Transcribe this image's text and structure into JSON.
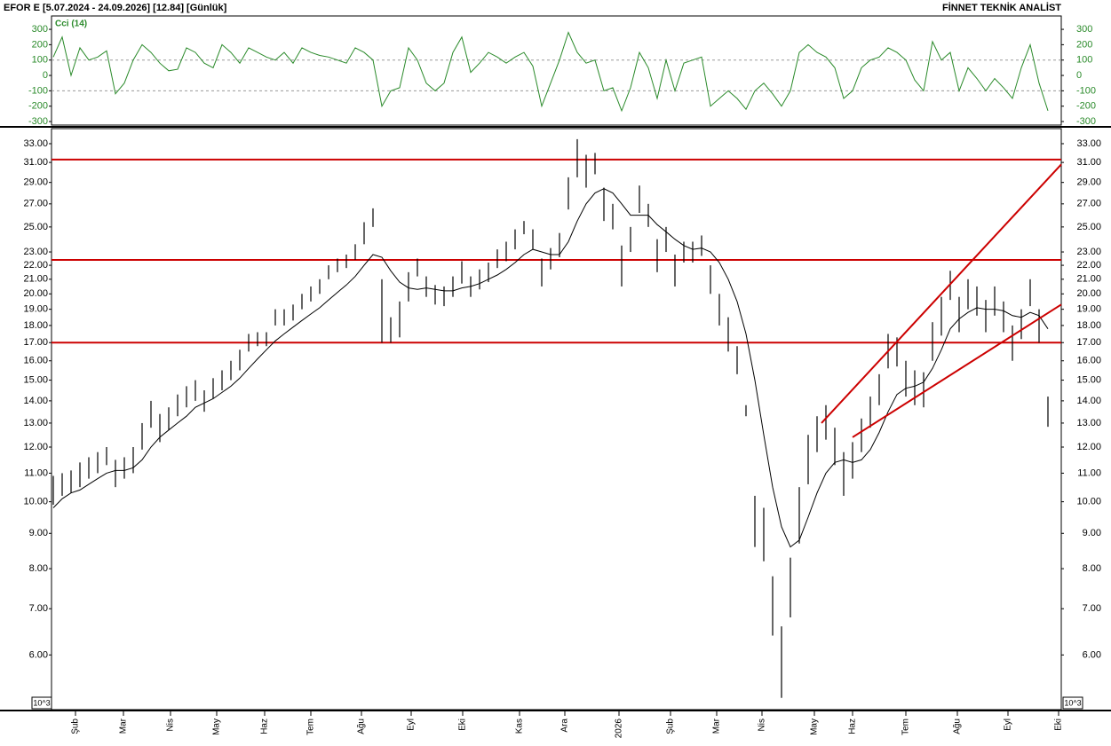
{
  "header": {
    "left": "EFOR  E  [5.07.2024 - 24.09.2026]  [12.84]  [Günlük]",
    "right": "FİNNET TEKNİK ANALİST",
    "unit_badge": "10^3"
  },
  "chart_data": [
    {
      "type": "line",
      "title": "Cci (14)",
      "xlim": [
        -0.2,
        113.5
      ],
      "ylim": [
        -323,
        387
      ],
      "yticks": [
        300,
        200,
        100,
        0,
        -100,
        -200,
        -300
      ],
      "levels": [
        100,
        -100
      ],
      "series": [
        {
          "name": "Cci (14)",
          "color": "#2a8a2a",
          "values": [
            120,
            250,
            0,
            180,
            100,
            120,
            160,
            -120,
            -50,
            100,
            200,
            150,
            80,
            30,
            40,
            180,
            150,
            80,
            50,
            200,
            150,
            80,
            180,
            150,
            120,
            100,
            150,
            80,
            180,
            150,
            130,
            120,
            100,
            80,
            180,
            150,
            100,
            -200,
            -100,
            -80,
            180,
            100,
            -50,
            -100,
            -50,
            150,
            250,
            20,
            80,
            150,
            120,
            80,
            120,
            150,
            60,
            -200,
            -50,
            100,
            280,
            150,
            80,
            100,
            -100,
            -80,
            -230,
            -80,
            150,
            50,
            -150,
            100,
            -100,
            80,
            100,
            120,
            -200,
            -150,
            -100,
            -150,
            -220,
            -100,
            -50,
            -120,
            -200,
            -100,
            150,
            200,
            150,
            120,
            50,
            -150,
            -100,
            50,
            100,
            120,
            180,
            150,
            100,
            -30,
            -100,
            220,
            100,
            150,
            -100,
            50,
            -20,
            -100,
            -20,
            -80,
            -150,
            50,
            200,
            -50,
            -230
          ]
        }
      ]
    },
    {
      "type": "ohlc",
      "log_scale": true,
      "xlim": [
        -0.2,
        113.5
      ],
      "ylim": [
        5,
        34.7
      ],
      "yticks": [
        {
          "value": 33,
          "label": "33.00"
        },
        {
          "value": 31,
          "label": "31.00"
        },
        {
          "value": 29,
          "label": "29.00"
        },
        {
          "value": 27,
          "label": "27.00"
        },
        {
          "value": 25,
          "label": "25.00"
        },
        {
          "value": 23,
          "label": "23.00"
        },
        {
          "value": 22,
          "label": "22.00"
        },
        {
          "value": 21,
          "label": "21.00"
        },
        {
          "value": 20,
          "label": "20.00"
        },
        {
          "value": 19,
          "label": "19.00"
        },
        {
          "value": 18,
          "label": "18.00"
        },
        {
          "value": 17,
          "label": "17.00"
        },
        {
          "value": 16,
          "label": "16.00"
        },
        {
          "value": 15,
          "label": "15.00"
        },
        {
          "value": 14,
          "label": "14.00"
        },
        {
          "value": 13,
          "label": "13.00"
        },
        {
          "value": 12,
          "label": "12.00"
        },
        {
          "value": 11,
          "label": "11.00"
        },
        {
          "value": 10,
          "label": "10.00"
        },
        {
          "value": 9,
          "label": "9.00"
        },
        {
          "value": 8,
          "label": "8.00"
        },
        {
          "value": 7,
          "label": "7.00"
        },
        {
          "value": 6,
          "label": "6.00"
        }
      ],
      "xticks": [
        {
          "value": 2.5,
          "label": "Şub"
        },
        {
          "value": 7.9,
          "label": "Mar"
        },
        {
          "value": 13.2,
          "label": "Nis"
        },
        {
          "value": 18.4,
          "label": "May"
        },
        {
          "value": 23.8,
          "label": "Haz"
        },
        {
          "value": 29,
          "label": "Tem"
        },
        {
          "value": 34.7,
          "label": "Ağu"
        },
        {
          "value": 40.3,
          "label": "Eyl"
        },
        {
          "value": 46.1,
          "label": "Eki"
        },
        {
          "value": 52.5,
          "label": "Kas"
        },
        {
          "value": 57.6,
          "label": "Ara"
        },
        {
          "value": 63.7,
          "label": "2026"
        },
        {
          "value": 69.5,
          "label": "Şub"
        },
        {
          "value": 74.7,
          "label": "Mar"
        },
        {
          "value": 79.8,
          "label": "Nis"
        },
        {
          "value": 85.7,
          "label": "May"
        },
        {
          "value": 90,
          "label": "Haz"
        },
        {
          "value": 96,
          "label": "Tem"
        },
        {
          "value": 101.8,
          "label": "Ağu"
        },
        {
          "value": 107.5,
          "label": "Eyl"
        },
        {
          "value": 113.2,
          "label": "Eki"
        }
      ],
      "series": [
        {
          "color": "#000000",
          "high": [
            10.9,
            11.0,
            11.1,
            11.4,
            11.6,
            11.8,
            12.0,
            11.5,
            11.6,
            12.0,
            13.0,
            14.0,
            13.4,
            13.7,
            14.3,
            14.7,
            15.0,
            14.5,
            15.1,
            15.5,
            16.0,
            16.6,
            17.5,
            17.6,
            17.6,
            19.0,
            19.0,
            19.3,
            20.0,
            20.5,
            21.0,
            22.0,
            22.5,
            22.8,
            23.6,
            25.4,
            26.6,
            21.0,
            18.5,
            19.5,
            21.5,
            22.5,
            21.2,
            20.6,
            20.5,
            21.2,
            22.3,
            21.2,
            21.7,
            22.2,
            23.2,
            23.8,
            24.8,
            25.5,
            24.8,
            22.5,
            23.3,
            24.5,
            29.5,
            33.5,
            31.8,
            32.0,
            28.5,
            27.0,
            23.5,
            25.0,
            28.7,
            27.0,
            24.0,
            25.0,
            22.8,
            23.8,
            23.8,
            24.3,
            22.0,
            20.0,
            18.5,
            16.8,
            13.8,
            10.2,
            9.8,
            7.8,
            6.6,
            8.3,
            10.5,
            12.5,
            13.3,
            13.8,
            12.8,
            11.8,
            12.2,
            13.2,
            14.2,
            15.3,
            17.5,
            17.3,
            16.0,
            15.5,
            15.4,
            18.2,
            19.8,
            21.6,
            19.8,
            21.0,
            20.5,
            19.6,
            20.5,
            19.5,
            18.0,
            19.0,
            21.0,
            19.0,
            14.2
          ],
          "low": [
            9.9,
            10.2,
            10.3,
            10.5,
            10.8,
            11.0,
            11.3,
            10.5,
            10.8,
            11.0,
            11.9,
            12.8,
            12.2,
            12.7,
            13.3,
            13.7,
            14.0,
            13.5,
            14.1,
            14.5,
            15.0,
            15.5,
            16.5,
            16.8,
            16.8,
            18.0,
            18.0,
            18.3,
            19.0,
            19.5,
            20.0,
            21.0,
            21.5,
            21.8,
            22.4,
            23.6,
            25.0,
            17.0,
            17.0,
            17.3,
            19.5,
            21.2,
            19.8,
            19.3,
            19.2,
            19.8,
            20.7,
            19.8,
            20.3,
            20.8,
            21.8,
            22.3,
            23.2,
            24.4,
            23.2,
            20.5,
            21.7,
            22.6,
            26.5,
            29.5,
            28.5,
            29.8,
            25.5,
            24.8,
            20.5,
            23.0,
            26.2,
            25.0,
            21.5,
            23.0,
            20.5,
            22.2,
            22.2,
            22.7,
            20.0,
            18.0,
            16.5,
            15.3,
            13.3,
            8.6,
            8.2,
            6.4,
            5.2,
            6.8,
            8.7,
            10.6,
            11.8,
            12.3,
            11.3,
            10.2,
            10.8,
            11.8,
            12.8,
            13.8,
            15.6,
            15.7,
            14.2,
            13.8,
            13.7,
            16.0,
            17.4,
            19.6,
            17.6,
            19.0,
            18.6,
            17.6,
            18.6,
            17.6,
            16.0,
            17.2,
            19.2,
            17.0,
            12.84
          ]
        },
        {
          "type": "line",
          "color": "#000000",
          "values": [
            9.8,
            10.1,
            10.3,
            10.4,
            10.6,
            10.8,
            11.0,
            11.1,
            11.1,
            11.2,
            11.5,
            12.0,
            12.4,
            12.7,
            13.0,
            13.3,
            13.7,
            13.9,
            14.1,
            14.4,
            14.7,
            15.1,
            15.6,
            16.1,
            16.6,
            17.1,
            17.5,
            17.9,
            18.3,
            18.7,
            19.1,
            19.6,
            20.1,
            20.6,
            21.2,
            22.0,
            22.8,
            22.6,
            21.6,
            20.8,
            20.4,
            20.3,
            20.4,
            20.3,
            20.2,
            20.2,
            20.4,
            20.5,
            20.7,
            21.0,
            21.3,
            21.7,
            22.2,
            22.8,
            23.2,
            23.0,
            22.8,
            22.8,
            23.8,
            25.5,
            27.0,
            28.0,
            28.4,
            28.0,
            27.0,
            26.0,
            26.0,
            26.0,
            25.2,
            24.6,
            24.0,
            23.5,
            23.2,
            23.3,
            23.0,
            22.2,
            21.0,
            19.5,
            17.5,
            15.0,
            12.5,
            10.5,
            9.2,
            8.6,
            8.8,
            9.5,
            10.3,
            11.0,
            11.4,
            11.5,
            11.4,
            11.5,
            11.9,
            12.6,
            13.5,
            14.3,
            14.6,
            14.7,
            14.9,
            15.6,
            16.6,
            17.8,
            18.4,
            18.8,
            19.1,
            19.0,
            19.0,
            18.9,
            18.6,
            18.5,
            18.8,
            18.6,
            17.8
          ]
        }
      ],
      "levels": [
        31.3,
        22.4,
        17.0
      ],
      "level_color": "#cc0000",
      "trendlines": [
        {
          "x": [
            86.5,
            113.5
          ],
          "y": [
            13.0,
            30.8
          ]
        },
        {
          "x": [
            90,
            113.5
          ],
          "y": [
            12.4,
            19.3
          ]
        }
      ],
      "trendline_color": "#cc0000"
    }
  ]
}
